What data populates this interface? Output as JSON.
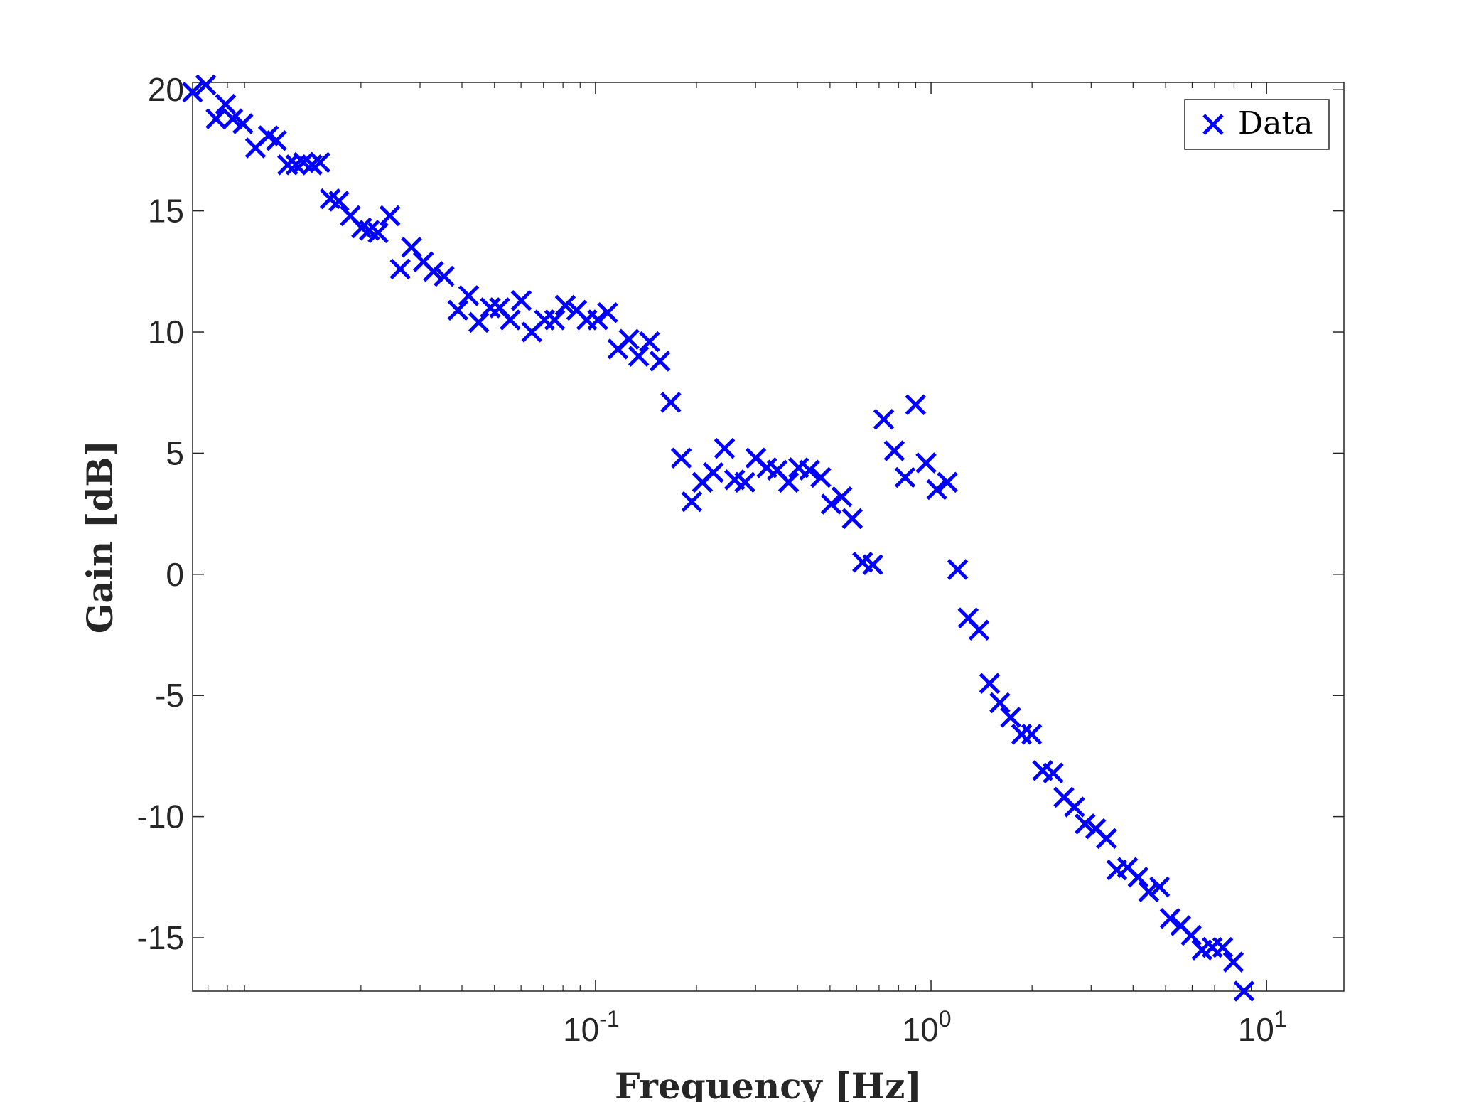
{
  "chart_data": {
    "type": "scatter",
    "xlabel": "Frequency [Hz]",
    "ylabel": "Gain [dB]",
    "xscale": "log",
    "xlim": [
      0.0063,
      17
    ],
    "ylim": [
      -17.2,
      20.3
    ],
    "x_ticks": [
      {
        "value": 0.1,
        "base": "10",
        "exp": "-1"
      },
      {
        "value": 1,
        "base": "10",
        "exp": "0"
      },
      {
        "value": 10,
        "base": "10",
        "exp": "1"
      }
    ],
    "y_ticks": [
      {
        "value": 20,
        "label": "20"
      },
      {
        "value": 15,
        "label": "15"
      },
      {
        "value": 10,
        "label": "10"
      },
      {
        "value": 5,
        "label": "5"
      },
      {
        "value": 0,
        "label": "0"
      },
      {
        "value": -5,
        "label": "-5"
      },
      {
        "value": -10,
        "label": "-10"
      },
      {
        "value": -15,
        "label": "-15"
      }
    ],
    "grid": false,
    "legend": {
      "position": "top-right",
      "entries": [
        "Data"
      ]
    },
    "marker_color": "#0000FF",
    "marker": "x",
    "series": [
      {
        "name": "Data",
        "points": [
          [
            0.0063,
            19.9
          ],
          [
            0.0069,
            20.2
          ],
          [
            0.0074,
            18.8
          ],
          [
            0.0079,
            19.4
          ],
          [
            0.0083,
            18.8
          ],
          [
            0.0089,
            18.6
          ],
          [
            0.0097,
            17.6
          ],
          [
            0.0106,
            18.1
          ],
          [
            0.0112,
            17.9
          ],
          [
            0.0121,
            16.9
          ],
          [
            0.0128,
            16.9
          ],
          [
            0.0135,
            17.0
          ],
          [
            0.0143,
            16.9
          ],
          [
            0.0151,
            17.0
          ],
          [
            0.0162,
            15.5
          ],
          [
            0.0172,
            15.4
          ],
          [
            0.0186,
            14.8
          ],
          [
            0.0201,
            14.3
          ],
          [
            0.0212,
            14.2
          ],
          [
            0.0225,
            14.1
          ],
          [
            0.0244,
            14.8
          ],
          [
            0.0262,
            12.6
          ],
          [
            0.0283,
            13.5
          ],
          [
            0.0307,
            12.9
          ],
          [
            0.0329,
            12.5
          ],
          [
            0.0354,
            12.3
          ],
          [
            0.0389,
            10.9
          ],
          [
            0.0419,
            11.5
          ],
          [
            0.0449,
            10.4
          ],
          [
            0.0486,
            11.0
          ],
          [
            0.0518,
            11.0
          ],
          [
            0.0557,
            10.5
          ],
          [
            0.0601,
            11.3
          ],
          [
            0.0646,
            10.0
          ],
          [
            0.0705,
            10.5
          ],
          [
            0.0756,
            10.5
          ],
          [
            0.0813,
            11.1
          ],
          [
            0.0879,
            10.9
          ],
          [
            0.0942,
            10.5
          ],
          [
            0.1016,
            10.5
          ],
          [
            0.1087,
            10.8
          ],
          [
            0.1166,
            9.3
          ],
          [
            0.1259,
            9.7
          ],
          [
            0.1345,
            9.0
          ],
          [
            0.1449,
            9.6
          ],
          [
            0.1556,
            8.8
          ],
          [
            0.1677,
            7.1
          ],
          [
            0.1802,
            4.8
          ],
          [
            0.1936,
            3.0
          ],
          [
            0.2083,
            3.8
          ],
          [
            0.2245,
            4.2
          ],
          [
            0.2425,
            5.2
          ],
          [
            0.2599,
            3.9
          ],
          [
            0.2788,
            3.8
          ],
          [
            0.3005,
            4.8
          ],
          [
            0.3241,
            4.4
          ],
          [
            0.3481,
            4.3
          ],
          [
            0.3762,
            3.8
          ],
          [
            0.4032,
            4.4
          ],
          [
            0.4344,
            4.3
          ],
          [
            0.4694,
            4.0
          ],
          [
            0.5043,
            2.9
          ],
          [
            0.5425,
            3.2
          ],
          [
            0.5827,
            2.3
          ],
          [
            0.6254,
            0.5
          ],
          [
            0.6709,
            0.4
          ],
          [
            0.7231,
            6.4
          ],
          [
            0.7772,
            5.1
          ],
          [
            0.8368,
            4.0
          ],
          [
            0.8994,
            7.0
          ],
          [
            0.9665,
            4.6
          ],
          [
            1.0404,
            3.5
          ],
          [
            1.1185,
            3.8
          ],
          [
            1.2007,
            0.2
          ],
          [
            1.2906,
            -1.8
          ],
          [
            1.3897,
            -2.3
          ],
          [
            1.4947,
            -4.5
          ],
          [
            1.6036,
            -5.3
          ],
          [
            1.7269,
            -5.9
          ],
          [
            1.8616,
            -6.6
          ],
          [
            1.9949,
            -6.6
          ],
          [
            2.1509,
            -8.1
          ],
          [
            2.3129,
            -8.2
          ],
          [
            2.4882,
            -9.2
          ],
          [
            2.6767,
            -9.6
          ],
          [
            2.8783,
            -10.3
          ],
          [
            3.095,
            -10.5
          ],
          [
            3.3332,
            -10.9
          ],
          [
            3.5783,
            -12.2
          ],
          [
            3.852,
            -12.1
          ],
          [
            4.1401,
            -12.5
          ],
          [
            4.4549,
            -13.1
          ],
          [
            4.7977,
            -12.9
          ],
          [
            5.1599,
            -14.2
          ],
          [
            5.5466,
            -14.5
          ],
          [
            5.9618,
            -14.9
          ],
          [
            6.4183,
            -15.5
          ],
          [
            6.8893,
            -15.4
          ],
          [
            7.4046,
            -15.4
          ],
          [
            7.9606,
            -16.0
          ],
          [
            8.563,
            -17.2
          ]
        ]
      }
    ]
  }
}
